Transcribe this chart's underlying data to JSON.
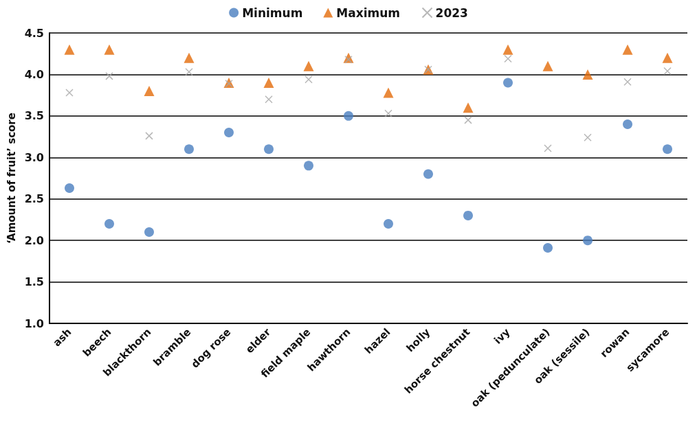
{
  "chart_data": {
    "type": "scatter",
    "ylabel": "‘Amount of fruit’ score",
    "categories": [
      "ash",
      "beech",
      "blackthorn",
      "bramble",
      "dog rose",
      "elder",
      "field maple",
      "hawthorn",
      "hazel",
      "holly",
      "horse chestnut",
      "ivy",
      "oak (pedunculate)",
      "oak (sessile)",
      "rowan",
      "sycamore"
    ],
    "series": [
      {
        "name": "Minimum",
        "color": "#4a7ebf",
        "marker": "circle",
        "values": [
          2.63,
          2.2,
          2.1,
          3.1,
          3.3,
          3.1,
          2.9,
          3.5,
          2.2,
          2.8,
          2.3,
          3.9,
          1.91,
          2.0,
          3.4,
          3.1
        ]
      },
      {
        "name": "Maximum",
        "color": "#e46c0a",
        "marker": "triangle",
        "values": [
          4.3,
          4.3,
          3.8,
          4.2,
          3.9,
          3.9,
          4.1,
          4.2,
          3.78,
          4.06,
          3.6,
          4.3,
          4.1,
          4.0,
          4.3,
          4.2
        ]
      },
      {
        "name": "2023",
        "color": "#a6a6a6",
        "marker": "cross",
        "values": [
          3.78,
          3.98,
          3.26,
          4.03,
          3.89,
          3.7,
          3.94,
          4.18,
          3.53,
          4.06,
          3.45,
          4.19,
          3.11,
          3.24,
          3.91,
          4.04
        ]
      }
    ],
    "ylim": [
      1.0,
      4.5
    ],
    "yticks": [
      {
        "value": 1,
        "label": "1.0"
      },
      1.5,
      {
        "value": 2,
        "label": "2.0"
      },
      2.5,
      {
        "value": 3,
        "label": "3.0"
      },
      3.5,
      {
        "value": 4,
        "label": "4.0"
      },
      4.5
    ],
    "grid": "y",
    "legend": "top"
  }
}
